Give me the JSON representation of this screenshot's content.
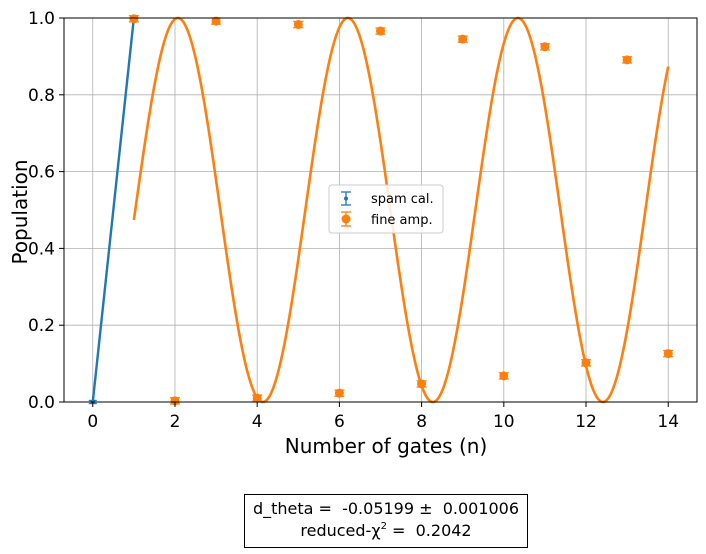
{
  "chart_data": {
    "type": "scatter",
    "title": "",
    "xlabel": "Number of gates (n)",
    "ylabel": "Population",
    "xlim": [
      -0.7,
      14.7
    ],
    "ylim": [
      0.0,
      1.0
    ],
    "xticks": [
      0,
      2,
      4,
      6,
      8,
      10,
      12,
      14
    ],
    "yticks": [
      0.0,
      0.2,
      0.4,
      0.6,
      0.8,
      1.0
    ],
    "xtick_labels": [
      "0",
      "2",
      "4",
      "6",
      "8",
      "10",
      "12",
      "14"
    ],
    "ytick_labels": [
      "0.0",
      "0.2",
      "0.4",
      "0.6",
      "0.8",
      "1.0"
    ],
    "grid": true,
    "legend_position": "center",
    "series": [
      {
        "name": "spam cal.",
        "color": "#1f77b4",
        "marker": "point",
        "x": [
          0,
          1
        ],
        "y": [
          0.0,
          1.0
        ],
        "yerr": [
          0.004,
          0.004
        ],
        "fit_line": {
          "x": [
            0,
            1
          ],
          "y": [
            0.0,
            1.0
          ]
        }
      },
      {
        "name": "fine amp.",
        "color": "#ff7f0e",
        "marker": "circle",
        "x": [
          1,
          2,
          3,
          4,
          5,
          6,
          7,
          8,
          9,
          10,
          11,
          12,
          13,
          14
        ],
        "y": [
          0.998,
          0.003,
          0.992,
          0.01,
          0.983,
          0.023,
          0.966,
          0.047,
          0.945,
          0.068,
          0.925,
          0.102,
          0.891,
          0.126
        ],
        "yerr": [
          0.008,
          0.008,
          0.008,
          0.008,
          0.008,
          0.008,
          0.008,
          0.008,
          0.008,
          0.008,
          0.008,
          0.008,
          0.008,
          0.008
        ],
        "fit": {
          "model": "0.5 - 0.5*cos((pi/2 + d_theta)*n)",
          "d_theta": -0.05199
        }
      }
    ],
    "annotation": {
      "line1": "d_theta =  -0.05199 ±  0.001006",
      "line2_prefix": "reduced-χ",
      "line2_sup": "2",
      "line2_suffix": " =  0.2042"
    }
  }
}
